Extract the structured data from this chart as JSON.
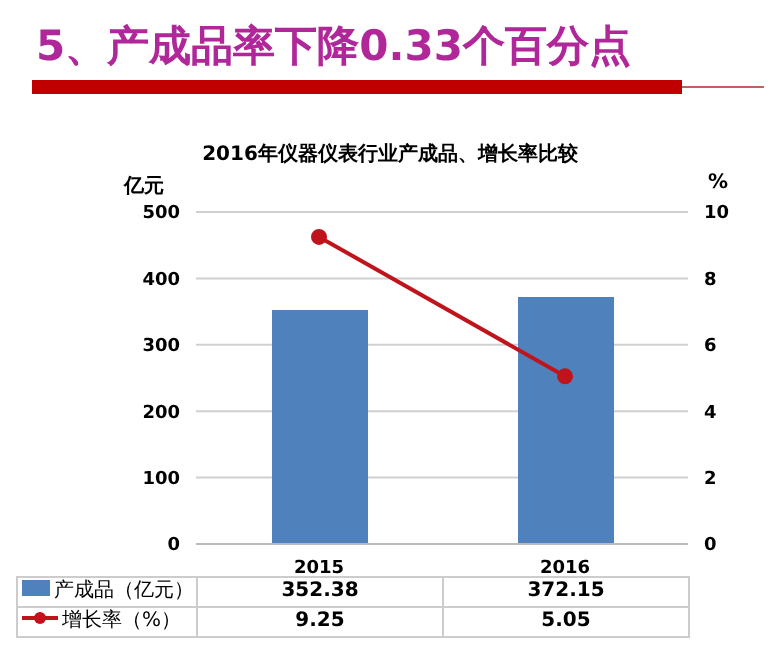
{
  "chart_data": {
    "type": "bar",
    "title": "5、产成品率下降0.33个百分点",
    "subtitle": "2016年仪器仪表行业产成品、增长率比较",
    "ylabel": "亿元",
    "y2label": "%",
    "categories": [
      "2015",
      "2016"
    ],
    "series": [
      {
        "name": "产成品（亿元）",
        "color": "#4f81bd",
        "values": [
          352.38,
          372.15
        ]
      },
      {
        "name": "增长率（%）",
        "type": "line",
        "axis": "y2",
        "color": "#c0141c",
        "values": [
          9.25,
          5.05
        ]
      }
    ],
    "ylim": [
      0,
      500
    ],
    "yticks": [
      0,
      100,
      200,
      300,
      400,
      500
    ],
    "y2lim": [
      0,
      10
    ],
    "y2ticks": [
      0,
      2,
      4,
      6,
      8,
      10
    ],
    "grid": "y",
    "legend": "bottom",
    "data_labels": true,
    "marker": "circle"
  }
}
